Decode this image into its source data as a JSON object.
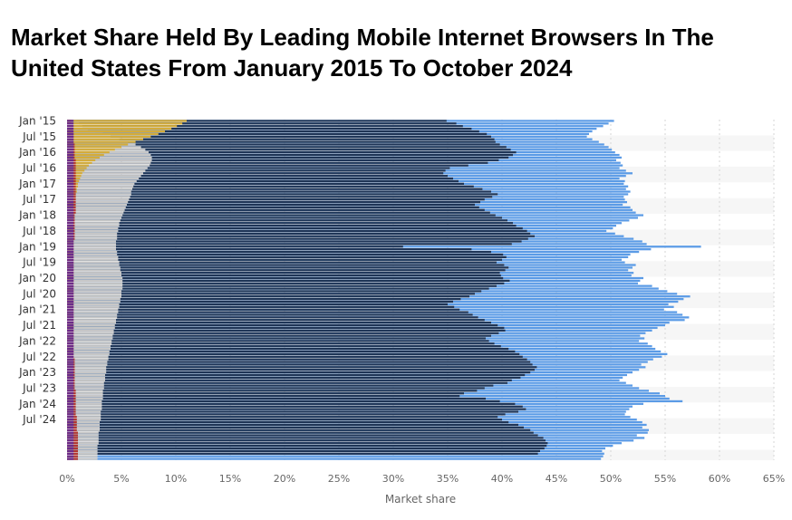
{
  "title": "Market Share Held By Leading Mobile Internet Browsers In The United States From January 2015 To October 2024",
  "chart_data": {
    "type": "bar",
    "orientation": "horizontal",
    "stacked": false,
    "title": "Market Share Held By Leading Mobile Internet Browsers In The United States From January 2015 To October 2024",
    "xlabel": "Market share",
    "ylabel": "",
    "xlim": [
      0,
      65
    ],
    "x_ticks": [
      "0%",
      "5%",
      "10%",
      "15%",
      "20%",
      "25%",
      "30%",
      "35%",
      "40%",
      "45%",
      "50%",
      "55%",
      "60%",
      "65%"
    ],
    "grid": true,
    "legend": "none",
    "tick_labels": [
      "Jan '15",
      "Jul '15",
      "Jan '16",
      "Jul '16",
      "Jan '17",
      "Jul '17",
      "Jan '18",
      "Jul '18",
      "Jan '19",
      "Jul '19",
      "Jan '20",
      "Jul '20",
      "Jan '21",
      "Jul '21",
      "Jan '22",
      "Jul '22",
      "Jan '23",
      "Jul '23",
      "Jan '24",
      "Jul '24"
    ],
    "tick_label_step": 6,
    "start_period": {
      "year": 2015,
      "month": 1
    },
    "end_period": {
      "year": 2024,
      "month": 10
    },
    "series": [
      {
        "name": "",
        "color": "#5b9be6",
        "values": [
          50.3,
          49.8,
          49.3,
          48.7,
          48.3,
          48.0,
          47.8,
          48.3,
          48.9,
          49.4,
          49.8,
          50.1,
          50.4,
          50.8,
          51.0,
          50.5,
          50.9,
          51.1,
          50.8,
          51.4,
          52.0,
          51.4,
          50.8,
          51.3,
          51.2,
          51.6,
          51.4,
          51.8,
          51.6,
          51.2,
          51.3,
          51.5,
          51.1,
          51.8,
          52.0,
          52.3,
          53.0,
          52.5,
          51.7,
          51.0,
          50.5,
          50.2,
          49.6,
          50.4,
          51.2,
          52.1,
          52.9,
          53.3,
          58.3,
          53.7,
          52.6,
          51.8,
          51.6,
          51.0,
          51.3,
          52.3,
          52.0,
          51.6,
          52.1,
          51.9,
          53.0,
          52.7,
          52.5,
          53.8,
          54.4,
          55.2,
          56.1,
          57.3,
          56.7,
          56.2,
          55.3,
          55.8,
          54.9,
          56.1,
          56.6,
          57.2,
          56.8,
          55.4,
          55.0,
          54.3,
          53.8,
          53.2,
          52.7,
          53.1,
          52.6,
          53.4,
          53.8,
          54.1,
          54.6,
          55.2,
          54.7,
          53.9,
          53.4,
          52.8,
          53.2,
          52.6,
          52.0,
          51.5,
          51.1,
          50.8,
          51.4,
          52.0,
          52.6,
          53.5,
          54.5,
          55.0,
          55.4,
          56.6,
          53.0,
          52.0,
          51.7,
          51.4,
          51.3,
          51.8,
          52.4,
          52.9,
          53.3,
          52.9,
          53.5,
          53.4,
          52.4,
          53.1,
          52.1,
          51.0,
          50.2,
          49.5,
          49.2,
          49.4,
          49.3,
          49.1
        ]
      },
      {
        "name": "",
        "color": "#1f3556",
        "values": [
          34.9,
          35.8,
          36.4,
          37.2,
          37.9,
          38.6,
          39.0,
          39.3,
          39.4,
          39.8,
          40.4,
          40.8,
          41.3,
          41.0,
          40.6,
          39.7,
          38.7,
          36.9,
          35.2,
          34.8,
          34.6,
          35.0,
          35.5,
          36.0,
          36.5,
          37.4,
          38.2,
          39.0,
          39.6,
          39.1,
          38.4,
          38.0,
          37.5,
          37.9,
          38.4,
          38.9,
          39.4,
          40.0,
          40.5,
          41.0,
          41.3,
          41.9,
          42.3,
          42.6,
          43.0,
          42.4,
          41.8,
          40.9,
          30.9,
          37.2,
          39.0,
          40.1,
          40.4,
          40.0,
          39.5,
          40.2,
          40.6,
          40.3,
          39.8,
          39.9,
          40.1,
          40.7,
          40.2,
          39.5,
          38.8,
          38.1,
          37.5,
          37.0,
          36.2,
          35.5,
          35.0,
          35.6,
          36.1,
          36.9,
          37.3,
          37.8,
          38.4,
          39.0,
          39.6,
          40.2,
          40.3,
          39.7,
          39.0,
          38.5,
          38.8,
          39.3,
          39.9,
          40.6,
          41.2,
          41.6,
          41.9,
          42.3,
          42.6,
          42.8,
          43.2,
          43.0,
          42.6,
          42.1,
          41.7,
          40.9,
          40.5,
          39.2,
          38.4,
          37.7,
          36.5,
          36.1,
          38.5,
          39.8,
          41.2,
          41.9,
          42.2,
          41.5,
          40.3,
          39.6,
          40.0,
          40.6,
          41.5,
          42.0,
          42.6,
          42.9,
          43.3,
          43.8,
          44.0,
          44.2,
          44.1,
          43.9,
          43.5,
          43.3
        ]
      },
      {
        "name": "",
        "color": "#c8c8c8",
        "values": [
          0.9,
          1.1,
          1.4,
          1.9,
          2.6,
          3.3,
          4.0,
          4.8,
          5.6,
          6.3,
          6.8,
          7.2,
          7.5,
          7.7,
          7.8,
          7.8,
          7.7,
          7.6,
          7.4,
          7.2,
          7.0,
          6.8,
          6.6,
          6.4,
          6.2,
          6.1,
          6.0,
          5.9,
          5.9,
          5.8,
          5.7,
          5.6,
          5.5,
          5.4,
          5.3,
          5.2,
          5.1,
          5.0,
          4.9,
          4.8,
          4.8,
          4.7,
          4.7,
          4.6,
          4.6,
          4.6,
          4.5,
          4.5,
          4.5,
          4.5,
          4.6,
          4.6,
          4.7,
          4.7,
          4.8,
          4.8,
          4.9,
          4.9,
          5.0,
          5.0,
          5.1,
          5.1,
          5.1,
          5.1,
          5.1,
          5.0,
          5.0,
          5.0,
          4.9,
          4.9,
          4.8,
          4.8,
          4.7,
          4.7,
          4.6,
          4.6,
          4.5,
          4.5,
          4.4,
          4.4,
          4.3,
          4.3,
          4.2,
          4.2,
          4.1,
          4.1,
          4.0,
          4.0,
          3.9,
          3.9,
          3.8,
          3.8,
          3.7,
          3.7,
          3.6,
          3.6,
          3.6,
          3.5,
          3.5,
          3.5,
          3.4,
          3.4,
          3.4,
          3.3,
          3.3,
          3.3,
          3.3,
          3.2,
          3.2,
          3.2,
          3.2,
          3.1,
          3.1,
          3.1,
          3.1,
          3.0,
          3.0,
          3.0,
          3.0,
          2.9,
          2.9,
          2.9,
          2.9,
          2.9,
          2.8,
          2.8,
          2.8,
          2.8,
          2.8,
          2.8
        ]
      },
      {
        "name": "",
        "color": "#d4ac3a",
        "values": [
          11.0,
          10.6,
          10.1,
          9.6,
          9.0,
          8.4,
          7.7,
          7.0,
          6.3,
          5.6,
          5.0,
          4.4,
          3.9,
          3.4,
          3.0,
          2.6,
          2.3,
          2.0,
          1.8,
          1.6,
          1.4,
          1.3,
          1.2,
          1.1,
          1.0,
          1.0,
          0.9,
          0.9,
          0.8,
          0.8,
          0.8,
          0.7,
          0.7,
          0.7,
          0.6,
          0.6,
          0.6,
          0.5,
          0.5,
          0.5,
          0.5,
          0.4,
          0.4,
          0.4,
          0.4,
          0.4,
          0.3,
          0.3,
          0.3,
          0.3,
          0.3,
          0.3,
          0.3,
          0.2,
          0.2,
          0.2,
          0.2,
          0.2,
          0.2,
          0.2,
          0.2,
          0.2,
          0.2,
          0.2,
          0.2,
          0.2,
          0.1,
          0.1,
          0.1,
          0.1,
          0.1,
          0.1,
          0.1,
          0.1,
          0.1,
          0.1,
          0.1,
          0.1,
          0.1,
          0.1,
          0.1,
          0.1,
          0.1,
          0.1,
          0.1,
          0.1,
          0.1,
          0.1,
          0.1,
          0.1,
          0.1,
          0.1,
          0.1,
          0.1,
          0.1,
          0.1,
          0.1,
          0.1,
          0.1,
          0.1,
          0.1,
          0.1,
          0.1,
          0.1,
          0.1,
          0.1,
          0.1,
          0.1,
          0.1,
          0.1,
          0.1,
          0.1,
          0.1,
          0.1,
          0.1,
          0.1,
          0.1,
          0.1,
          0.1,
          0.1,
          0.1,
          0.1,
          0.1,
          0.1,
          0.1,
          0.1,
          0.1,
          0.1,
          0.1,
          0.1
        ]
      },
      {
        "name": "",
        "color": "#b3362f",
        "values": [
          0.4,
          0.4,
          0.5,
          0.5,
          0.5,
          0.6,
          0.6,
          0.6,
          0.6,
          0.7,
          0.7,
          0.7,
          0.7,
          0.7,
          0.7,
          0.8,
          0.8,
          0.8,
          0.8,
          0.8,
          0.8,
          0.8,
          0.8,
          0.8,
          0.8,
          0.8,
          0.8,
          0.8,
          0.8,
          0.8,
          0.8,
          0.8,
          0.8,
          0.8,
          0.8,
          0.8,
          0.7,
          0.7,
          0.7,
          0.7,
          0.7,
          0.7,
          0.7,
          0.7,
          0.7,
          0.7,
          0.6,
          0.6,
          0.6,
          0.6,
          0.6,
          0.6,
          0.6,
          0.6,
          0.6,
          0.6,
          0.6,
          0.6,
          0.6,
          0.6,
          0.6,
          0.6,
          0.6,
          0.6,
          0.6,
          0.6,
          0.6,
          0.6,
          0.6,
          0.6,
          0.6,
          0.6,
          0.6,
          0.6,
          0.6,
          0.6,
          0.6,
          0.6,
          0.6,
          0.6,
          0.6,
          0.6,
          0.6,
          0.6,
          0.6,
          0.6,
          0.6,
          0.6,
          0.6,
          0.6,
          0.6,
          0.7,
          0.7,
          0.7,
          0.7,
          0.7,
          0.7,
          0.7,
          0.7,
          0.7,
          0.7,
          0.7,
          0.7,
          0.8,
          0.8,
          0.8,
          0.8,
          0.8,
          0.8,
          0.8,
          0.8,
          0.8,
          0.8,
          0.9,
          0.9,
          0.9,
          0.9,
          0.9,
          0.9,
          1.0,
          1.0,
          1.0,
          1.0,
          1.0,
          1.0,
          1.0,
          1.0,
          1.0,
          1.0,
          1.0
        ]
      },
      {
        "name": "",
        "color": "#6b2c8a",
        "values": [
          0.6,
          0.6,
          0.6,
          0.6,
          0.6,
          0.6,
          0.6,
          0.6,
          0.6,
          0.6,
          0.6,
          0.6,
          0.6,
          0.6,
          0.6,
          0.6,
          0.6,
          0.6,
          0.6,
          0.6,
          0.6,
          0.6,
          0.6,
          0.6,
          0.6,
          0.6,
          0.6,
          0.6,
          0.6,
          0.6,
          0.6,
          0.6,
          0.6,
          0.6,
          0.6,
          0.6,
          0.6,
          0.6,
          0.6,
          0.6,
          0.6,
          0.6,
          0.6,
          0.6,
          0.6,
          0.6,
          0.6,
          0.6,
          0.6,
          0.6,
          0.6,
          0.6,
          0.6,
          0.6,
          0.6,
          0.6,
          0.6,
          0.6,
          0.6,
          0.6,
          0.6,
          0.6,
          0.6,
          0.6,
          0.6,
          0.6,
          0.6,
          0.6,
          0.6,
          0.6,
          0.6,
          0.6,
          0.6,
          0.6,
          0.6,
          0.6,
          0.6,
          0.6,
          0.6,
          0.6,
          0.6,
          0.6,
          0.6,
          0.6,
          0.6,
          0.6,
          0.6,
          0.6,
          0.6,
          0.6,
          0.6,
          0.6,
          0.6,
          0.6,
          0.6,
          0.6,
          0.6,
          0.6,
          0.6,
          0.6,
          0.6,
          0.6,
          0.6,
          0.6,
          0.6,
          0.6,
          0.6,
          0.6,
          0.6,
          0.6,
          0.6,
          0.6,
          0.6,
          0.6,
          0.6,
          0.6,
          0.6,
          0.6,
          0.6,
          0.6,
          0.6,
          0.6,
          0.6,
          0.6,
          0.6,
          0.6,
          0.6,
          0.6,
          0.6,
          0.6
        ]
      }
    ]
  }
}
